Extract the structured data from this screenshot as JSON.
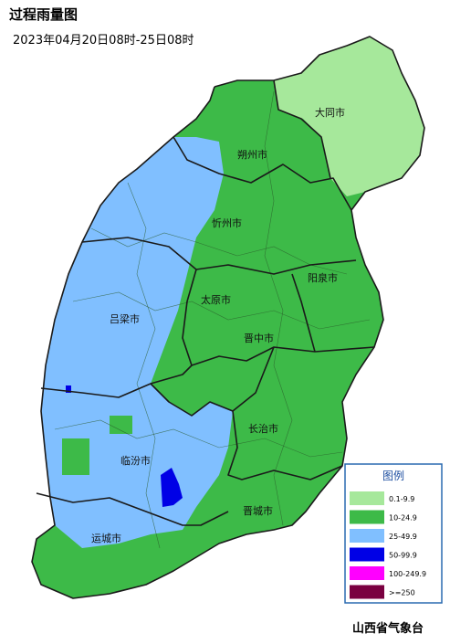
{
  "header": {
    "title": "过程雨量图",
    "subtitle": "2023年04月20日08时-25日08时"
  },
  "cities": [
    "大同市",
    "朔州市",
    "忻州市",
    "阳泉市",
    "太原市",
    "吕梁市",
    "晋中市",
    "长治市",
    "临汾市",
    "晋城市",
    "运城市"
  ],
  "legend": {
    "title": "图例",
    "items": [
      {
        "label": "0.1-9.9",
        "color": "#a6e89b"
      },
      {
        "label": "10-24.9",
        "color": "#3dba48"
      },
      {
        "label": "25-49.9",
        "color": "#80bfff"
      },
      {
        "label": "50-99.9",
        "color": "#0000e6"
      },
      {
        "label": "100-249.9",
        "color": "#ff00ff"
      },
      {
        "label": ">=250",
        "color": "#7a0040"
      }
    ]
  },
  "footer": "山西省气象台"
}
